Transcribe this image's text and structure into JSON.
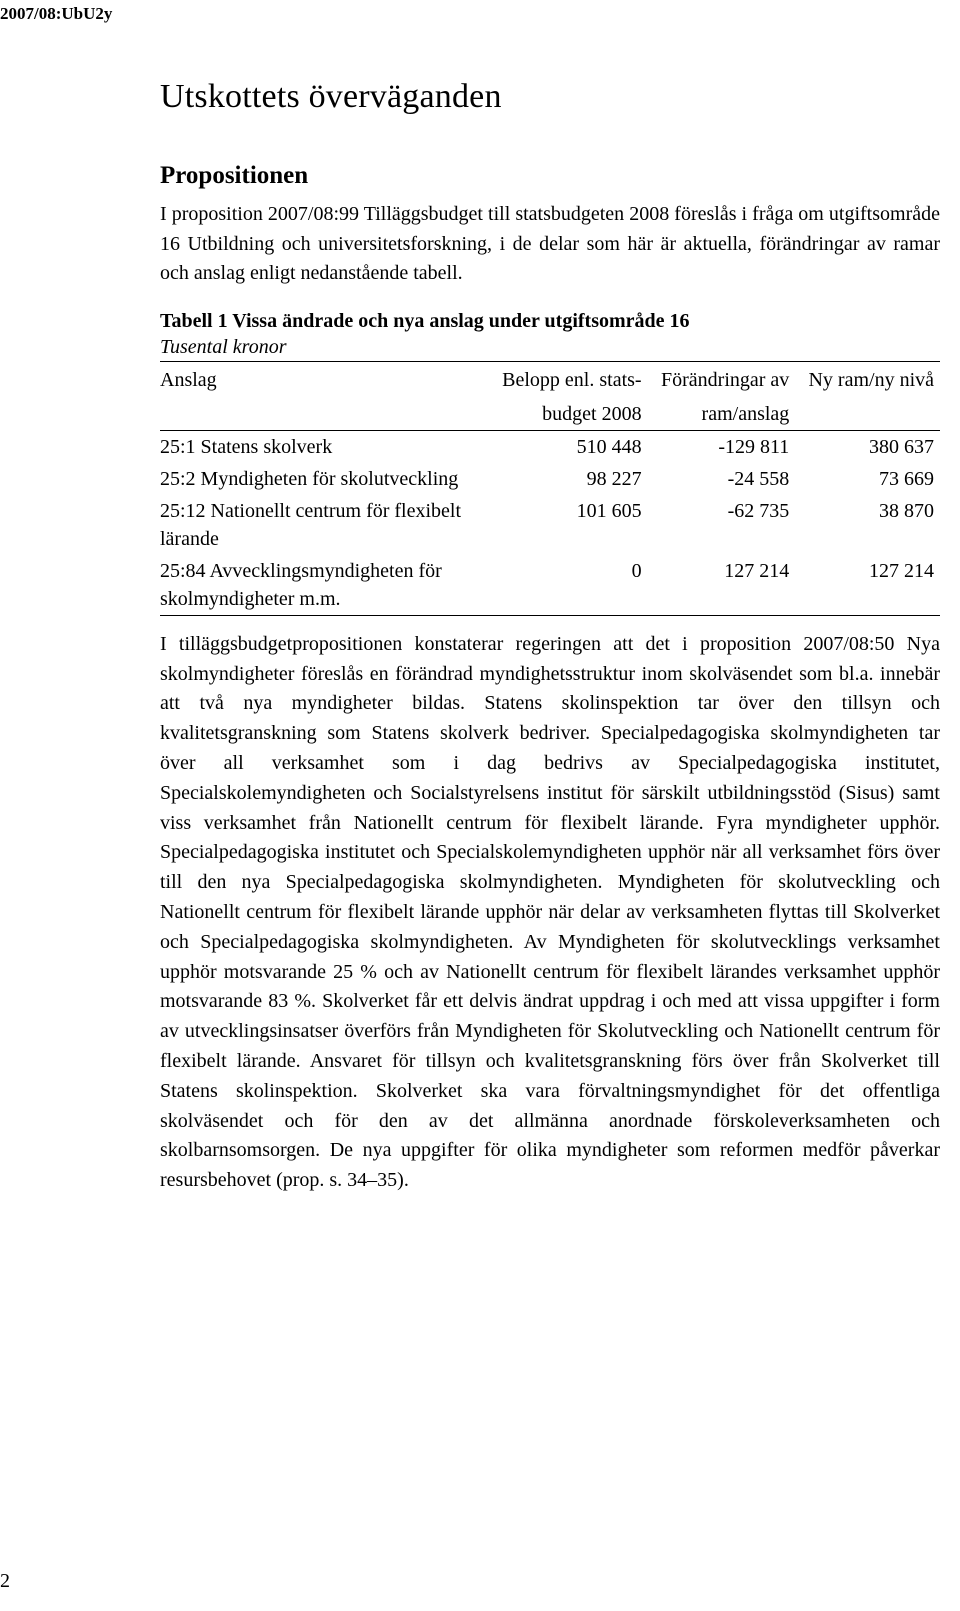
{
  "header": {
    "doc_code": "2007/08:UbU2y"
  },
  "title": "Utskottets överväganden",
  "section_heading": "Propositionen",
  "intro_paragraph": "I proposition 2007/08:99 Tilläggsbudget till statsbudgeten 2008 föreslås i fråga om utgiftsområde 16 Utbildning och universitetsforskning, i de delar som här är aktuella, förändringar av ramar och anslag enligt nedanstående tabell.",
  "table": {
    "title": "Tabell 1 Vissa ändrade och nya anslag under utgiftsområde 16",
    "subtitle": "Tusental kronor",
    "columns": {
      "c1": "Anslag",
      "c2a": "Belopp enl. stats-",
      "c2b": "budget 2008",
      "c3a": "Förändringar av",
      "c3b": "ram/anslag",
      "c4": "Ny ram/ny nivå"
    },
    "rows": [
      {
        "label": "25:1 Statens skolverk",
        "v1": "510 448",
        "v2": "-129 811",
        "v3": "380 637"
      },
      {
        "label": "25:2 Myndigheten för skolutveckling",
        "v1": "98 227",
        "v2": "-24 558",
        "v3": "73 669"
      },
      {
        "label": "25:12 Nationellt centrum för flexibelt lärande",
        "v1": "101 605",
        "v2": "-62 735",
        "v3": "38 870"
      },
      {
        "label": "25:84 Avvecklingsmyndigheten för skolmyndigheter m.m.",
        "v1": "0",
        "v2": "127 214",
        "v3": "127 214"
      }
    ]
  },
  "body_paragraph": "I tilläggsbudgetpropositionen konstaterar regeringen att det i proposition 2007/08:50 Nya skolmyndigheter föreslås en förändrad myndighetsstruktur inom skolväsendet som bl.a. innebär att två nya myndigheter bildas. Statens skolinspektion tar över den tillsyn och kvalitetsgranskning som Statens skolverk bedriver. Specialpedagogiska skolmyndigheten tar över all verksamhet som i dag bedrivs av Specialpedagogiska institutet, Specialskolemyndigheten och Socialstyrelsens institut för särskilt utbildningsstöd (Sisus) samt viss verksamhet från Nationellt centrum för flexibelt lärande. Fyra myndigheter upphör. Specialpedagogiska institutet och Specialskolemyndigheten upphör när all verksamhet förs över till den nya Specialpedagogiska skolmyndigheten. Myndigheten för skolutveckling och Nationellt centrum för flexibelt lärande upphör när delar av verksamheten flyttas till Skolverket och Specialpedagogiska skolmyndigheten. Av Myndigheten för skolutvecklings verksamhet upphör motsvarande 25 % och av Nationellt centrum för flexibelt lärandes verksamhet upphör motsvarande 83 %. Skolverket får ett delvis ändrat uppdrag i och med att vissa uppgifter i form av utvecklingsinsatser överförs från Myndigheten för Skolutveckling och Nationellt centrum för flexibelt lärande. Ansvaret för tillsyn och kvalitetsgranskning förs över från Skolverket till Statens skolinspektion. Skolverket ska vara förvaltningsmyndighet för det offentliga skolväsendet och för den av det allmänna anordnade förskoleverksamheten och skolbarnsomsorgen. De nya uppgifter för olika myndigheter som reformen medför påverkar resursbehovet (prop. s. 34–35).",
  "page_number": "2"
}
